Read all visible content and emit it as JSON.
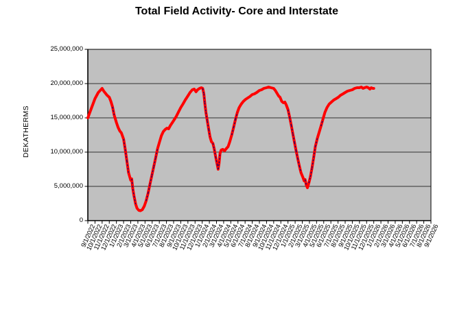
{
  "chart": {
    "title": "Total Field Activity- Core and Interstate",
    "y_axis_title": "DEKATHERMS"
  },
  "chart_data": {
    "type": "line",
    "title": "Total Field Activity- Core and Interstate",
    "xlabel": "",
    "ylabel": "DEKATHERMS",
    "ylim": [
      0,
      25000000
    ],
    "ytick_interval": 5000000,
    "ytick_labels": [
      "0",
      "5,000,000",
      "10,000,000",
      "15,000,000",
      "20,000,000",
      "25,000,000"
    ],
    "xtick_labels": [
      "9/1/2022",
      "10/1/2022",
      "11/1/2022",
      "12/1/2022",
      "1/1/2023",
      "2/1/2023",
      "3/1/2023",
      "4/1/2023",
      "5/1/2023",
      "6/1/2023",
      "7/1/2023",
      "8/1/2023",
      "9/1/2023",
      "10/1/2023",
      "11/1/2023",
      "12/1/2023",
      "1/1/2024",
      "2/1/2024",
      "3/1/2024",
      "4/1/2024",
      "5/1/2024",
      "6/1/2024",
      "7/1/2024",
      "8/1/2024",
      "9/1/2024",
      "10/1/2024",
      "11/1/2024",
      "12/1/2024",
      "1/1/2025",
      "2/1/2025",
      "3/1/2025",
      "4/1/2025",
      "5/1/2025",
      "6/1/2025",
      "7/1/2025",
      "8/1/2025",
      "9/1/2025",
      "10/1/2025",
      "11/1/2025",
      "12/1/2025",
      "1/1/2026",
      "2/1/2026",
      "3/1/2026",
      "4/1/2026",
      "5/1/2026",
      "6/1/2026",
      "7/1/2026",
      "8/1/2026",
      "9/1/2026"
    ],
    "grid": true,
    "legend": "none",
    "plot_bg": "#C0C0C0",
    "line_color": "#FF0000",
    "overlay_color": "#000080",
    "series": [
      {
        "name": "Total Field Activity",
        "color": "#FF0000",
        "style": "solid",
        "points": [
          [
            "9/1/2022",
            15000000
          ],
          [
            "9/15/2022",
            16300000
          ],
          [
            "10/1/2022",
            17800000
          ],
          [
            "10/15/2022",
            18700000
          ],
          [
            "11/1/2022",
            19300000
          ],
          [
            "11/8/2022",
            18900000
          ],
          [
            "11/15/2022",
            18600000
          ],
          [
            "11/22/2022",
            18300000
          ],
          [
            "12/1/2022",
            18000000
          ],
          [
            "12/8/2022",
            17400000
          ],
          [
            "12/15/2022",
            16600000
          ],
          [
            "12/22/2022",
            15400000
          ],
          [
            "1/1/2023",
            14300000
          ],
          [
            "1/8/2023",
            13600000
          ],
          [
            "1/15/2023",
            13100000
          ],
          [
            "1/22/2023",
            12800000
          ],
          [
            "2/1/2023",
            11900000
          ],
          [
            "2/8/2023",
            10400000
          ],
          [
            "2/15/2023",
            8700000
          ],
          [
            "2/22/2023",
            7000000
          ],
          [
            "3/1/2023",
            5900000
          ],
          [
            "3/5/2023",
            6100000
          ],
          [
            "3/10/2023",
            4600000
          ],
          [
            "3/15/2023",
            3600000
          ],
          [
            "3/22/2023",
            2400000
          ],
          [
            "3/28/2023",
            1800000
          ],
          [
            "4/5/2023",
            1500000
          ],
          [
            "4/12/2023",
            1450000
          ],
          [
            "4/20/2023",
            1600000
          ],
          [
            "4/28/2023",
            2100000
          ],
          [
            "5/6/2023",
            2900000
          ],
          [
            "5/14/2023",
            4000000
          ],
          [
            "5/22/2023",
            5300000
          ],
          [
            "5/30/2023",
            6600000
          ],
          [
            "6/8/2023",
            7900000
          ],
          [
            "6/16/2023",
            9200000
          ],
          [
            "6/24/2023",
            10500000
          ],
          [
            "7/2/2023",
            11500000
          ],
          [
            "7/10/2023",
            12400000
          ],
          [
            "7/18/2023",
            13000000
          ],
          [
            "7/26/2023",
            13300000
          ],
          [
            "8/3/2023",
            13500000
          ],
          [
            "8/10/2023",
            13400000
          ],
          [
            "8/18/2023",
            13900000
          ],
          [
            "8/26/2023",
            14300000
          ],
          [
            "9/3/2023",
            14700000
          ],
          [
            "9/12/2023",
            15200000
          ],
          [
            "9/21/2023",
            15800000
          ],
          [
            "10/1/2023",
            16500000
          ],
          [
            "10/10/2023",
            17000000
          ],
          [
            "10/20/2023",
            17600000
          ],
          [
            "11/1/2023",
            18200000
          ],
          [
            "11/10/2023",
            18700000
          ],
          [
            "11/20/2023",
            19100000
          ],
          [
            "11/28/2023",
            19200000
          ],
          [
            "12/5/2023",
            18800000
          ],
          [
            "12/12/2023",
            19100000
          ],
          [
            "12/20/2023",
            19300000
          ],
          [
            "12/28/2023",
            19400000
          ],
          [
            "1/3/2024",
            19300000
          ],
          [
            "1/8/2024",
            18500000
          ],
          [
            "1/12/2024",
            17200000
          ],
          [
            "1/17/2024",
            15800000
          ],
          [
            "1/23/2024",
            14500000
          ],
          [
            "1/29/2024",
            13300000
          ],
          [
            "2/4/2024",
            12200000
          ],
          [
            "2/10/2024",
            11500000
          ],
          [
            "2/16/2024",
            11300000
          ],
          [
            "2/22/2024",
            10400000
          ],
          [
            "2/28/2024",
            9300000
          ],
          [
            "3/4/2024",
            8200000
          ],
          [
            "3/8/2024",
            7500000
          ],
          [
            "3/12/2024",
            8400000
          ],
          [
            "3/16/2024",
            9800000
          ],
          [
            "3/21/2024",
            10300000
          ],
          [
            "3/28/2024",
            10400000
          ],
          [
            "4/5/2024",
            10200000
          ],
          [
            "4/12/2024",
            10500000
          ],
          [
            "4/20/2024",
            10800000
          ],
          [
            "4/27/2024",
            11500000
          ],
          [
            "5/5/2024",
            12500000
          ],
          [
            "5/13/2024",
            13600000
          ],
          [
            "5/21/2024",
            14800000
          ],
          [
            "5/29/2024",
            15800000
          ],
          [
            "6/6/2024",
            16500000
          ],
          [
            "6/15/2024",
            17000000
          ],
          [
            "6/24/2024",
            17400000
          ],
          [
            "7/3/2024",
            17700000
          ],
          [
            "7/12/2024",
            17900000
          ],
          [
            "7/21/2024",
            18100000
          ],
          [
            "8/1/2024",
            18400000
          ],
          [
            "8/10/2024",
            18500000
          ],
          [
            "8/20/2024",
            18700000
          ],
          [
            "9/1/2024",
            19000000
          ],
          [
            "9/10/2024",
            19100000
          ],
          [
            "9/20/2024",
            19300000
          ],
          [
            "10/1/2024",
            19400000
          ],
          [
            "10/10/2024",
            19500000
          ],
          [
            "10/20/2024",
            19400000
          ],
          [
            "11/1/2024",
            19300000
          ],
          [
            "11/8/2024",
            19000000
          ],
          [
            "11/15/2024",
            18600000
          ],
          [
            "11/22/2024",
            18200000
          ],
          [
            "11/28/2024",
            18000000
          ],
          [
            "12/5/2024",
            17400000
          ],
          [
            "12/12/2024",
            17200000
          ],
          [
            "12/18/2024",
            17300000
          ],
          [
            "12/24/2024",
            16900000
          ],
          [
            "1/1/2025",
            16200000
          ],
          [
            "1/8/2025",
            15100000
          ],
          [
            "1/15/2025",
            13900000
          ],
          [
            "1/22/2025",
            12600000
          ],
          [
            "1/29/2025",
            11400000
          ],
          [
            "2/5/2025",
            10200000
          ],
          [
            "2/12/2025",
            9100000
          ],
          [
            "2/19/2025",
            8000000
          ],
          [
            "2/26/2025",
            7000000
          ],
          [
            "3/4/2025",
            6300000
          ],
          [
            "3/9/2025",
            5800000
          ],
          [
            "3/13/2025",
            6000000
          ],
          [
            "3/18/2025",
            5200000
          ],
          [
            "3/23/2025",
            4800000
          ],
          [
            "3/29/2025",
            5500000
          ],
          [
            "4/5/2025",
            6400000
          ],
          [
            "4/12/2025",
            7700000
          ],
          [
            "4/19/2025",
            9200000
          ],
          [
            "4/26/2025",
            10800000
          ],
          [
            "5/4/2025",
            12000000
          ],
          [
            "5/12/2025",
            12900000
          ],
          [
            "5/20/2025",
            13800000
          ],
          [
            "5/28/2025",
            14800000
          ],
          [
            "6/6/2025",
            15800000
          ],
          [
            "6/15/2025",
            16500000
          ],
          [
            "6/24/2025",
            17000000
          ],
          [
            "7/3/2025",
            17300000
          ],
          [
            "7/13/2025",
            17600000
          ],
          [
            "7/23/2025",
            17800000
          ],
          [
            "8/2/2025",
            18000000
          ],
          [
            "8/12/2025",
            18300000
          ],
          [
            "8/22/2025",
            18500000
          ],
          [
            "9/1/2025",
            18700000
          ],
          [
            "9/11/2025",
            18900000
          ],
          [
            "9/21/2025",
            19000000
          ],
          [
            "10/1/2025",
            19100000
          ],
          [
            "10/11/2025",
            19300000
          ],
          [
            "10/21/2025",
            19400000
          ],
          [
            "11/1/2025",
            19400000
          ],
          [
            "11/9/2025",
            19500000
          ],
          [
            "11/16/2025",
            19300000
          ],
          [
            "11/23/2025",
            19400000
          ],
          [
            "12/1/2025",
            19500000
          ],
          [
            "12/8/2025",
            19400000
          ],
          [
            "12/15/2025",
            19200000
          ],
          [
            "12/21/2025",
            19400000
          ],
          [
            "12/27/2025",
            19300000
          ],
          [
            "1/1/2026",
            19300000
          ]
        ]
      }
    ]
  }
}
